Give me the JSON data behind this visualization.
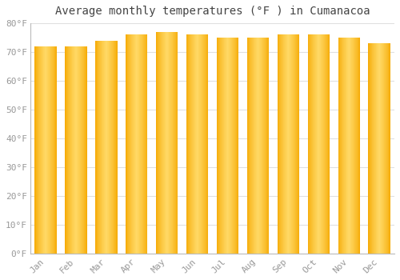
{
  "title": "Average monthly temperatures (°F ) in Cumanacoa",
  "months": [
    "Jan",
    "Feb",
    "Mar",
    "Apr",
    "May",
    "Jun",
    "Jul",
    "Aug",
    "Sep",
    "Oct",
    "Nov",
    "Dec"
  ],
  "values": [
    72,
    72,
    74,
    76,
    77,
    76,
    75,
    75,
    76,
    76,
    75,
    73
  ],
  "ylim": [
    0,
    80
  ],
  "yticks": [
    0,
    10,
    20,
    30,
    40,
    50,
    60,
    70,
    80
  ],
  "ytick_labels": [
    "0°F",
    "10°F",
    "20°F",
    "30°F",
    "40°F",
    "50°F",
    "60°F",
    "70°F",
    "80°F"
  ],
  "bar_color_edge": "#F5A800",
  "bar_color_center": "#FFD966",
  "background_color": "#ffffff",
  "grid_color": "#e0e0e0",
  "title_fontsize": 10,
  "tick_fontsize": 8,
  "tick_color": "#999999",
  "title_color": "#444444",
  "bar_width": 0.72,
  "n_gradient": 60
}
